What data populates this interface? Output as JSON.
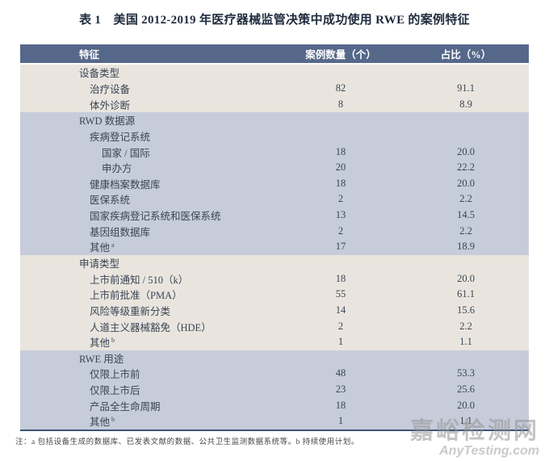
{
  "page": {
    "title": "表 1　美国 2012-2019 年医疗器械监管决策中成功使用 RWE 的案例特征",
    "footnote": "注：a 包括设备生成的数据库、已发表文献的数据、公共卫生监测数据系统等。b 持续使用计划。"
  },
  "colors": {
    "header_bg": "#56688a",
    "header_text": "#ffffff",
    "beige_row_bg": "#e9e5de",
    "blue_row_bg": "#c6ccda",
    "bottom_line": "#3d5478",
    "title_color": "#1f2b3d",
    "cell_text": "#3a4454"
  },
  "table": {
    "columns": {
      "feature": "特征",
      "count": "案例数量（个）",
      "percent": "占比（%）"
    },
    "sections": [
      {
        "theme": "beige",
        "rows": [
          {
            "label": "设备类型",
            "sup": "",
            "indent": 0,
            "count": "",
            "pct": ""
          },
          {
            "label": "治疗设备",
            "sup": "",
            "indent": 1,
            "count": "82",
            "pct": "91.1"
          },
          {
            "label": "体外诊断",
            "sup": "",
            "indent": 1,
            "count": "8",
            "pct": "8.9"
          }
        ]
      },
      {
        "theme": "blue",
        "rows": [
          {
            "label": "RWD 数据源",
            "sup": "",
            "indent": 0,
            "count": "",
            "pct": ""
          },
          {
            "label": "疾病登记系统",
            "sup": "",
            "indent": 1,
            "count": "",
            "pct": ""
          },
          {
            "label": "国家 / 国际",
            "sup": "",
            "indent": 2,
            "count": "18",
            "pct": "20.0"
          },
          {
            "label": "申办方",
            "sup": "",
            "indent": 2,
            "count": "20",
            "pct": "22.2"
          },
          {
            "label": "健康档案数据库",
            "sup": "",
            "indent": 1,
            "count": "18",
            "pct": "20.0"
          },
          {
            "label": "医保系统",
            "sup": "",
            "indent": 1,
            "count": "2",
            "pct": "2.2"
          },
          {
            "label": "国家疾病登记系统和医保系统",
            "sup": "",
            "indent": 1,
            "count": "13",
            "pct": "14.5"
          },
          {
            "label": "基因组数据库",
            "sup": "",
            "indent": 1,
            "count": "2",
            "pct": "2.2"
          },
          {
            "label": "其他",
            "sup": "a",
            "indent": 1,
            "count": "17",
            "pct": "18.9"
          }
        ]
      },
      {
        "theme": "beige",
        "rows": [
          {
            "label": "申请类型",
            "sup": "",
            "indent": 0,
            "count": "",
            "pct": ""
          },
          {
            "label": "上市前通知 / 510（k）",
            "sup": "",
            "indent": 1,
            "count": "18",
            "pct": "20.0"
          },
          {
            "label": "上市前批准（PMA）",
            "sup": "",
            "indent": 1,
            "count": "55",
            "pct": "61.1"
          },
          {
            "label": "风险等级重新分类",
            "sup": "",
            "indent": 1,
            "count": "14",
            "pct": "15.6"
          },
          {
            "label": "人道主义器械豁免（HDE）",
            "sup": "",
            "indent": 1,
            "count": "2",
            "pct": "2.2"
          },
          {
            "label": "其他",
            "sup": "b",
            "indent": 1,
            "count": "1",
            "pct": "1.1"
          }
        ]
      },
      {
        "theme": "blue",
        "rows": [
          {
            "label": "RWE 用途",
            "sup": "",
            "indent": 0,
            "count": "",
            "pct": ""
          },
          {
            "label": "仅限上市前",
            "sup": "",
            "indent": 1,
            "count": "48",
            "pct": "53.3"
          },
          {
            "label": "仅限上市后",
            "sup": "",
            "indent": 1,
            "count": "23",
            "pct": "25.6"
          },
          {
            "label": "产品全生命周期",
            "sup": "",
            "indent": 1,
            "count": "18",
            "pct": "20.0"
          },
          {
            "label": "其他",
            "sup": "b",
            "indent": 1,
            "count": "1",
            "pct": "1.1"
          }
        ]
      }
    ]
  },
  "watermark": {
    "site_name_cn": "嘉峪检测网",
    "site_name_en": "AnyTesting.com"
  }
}
